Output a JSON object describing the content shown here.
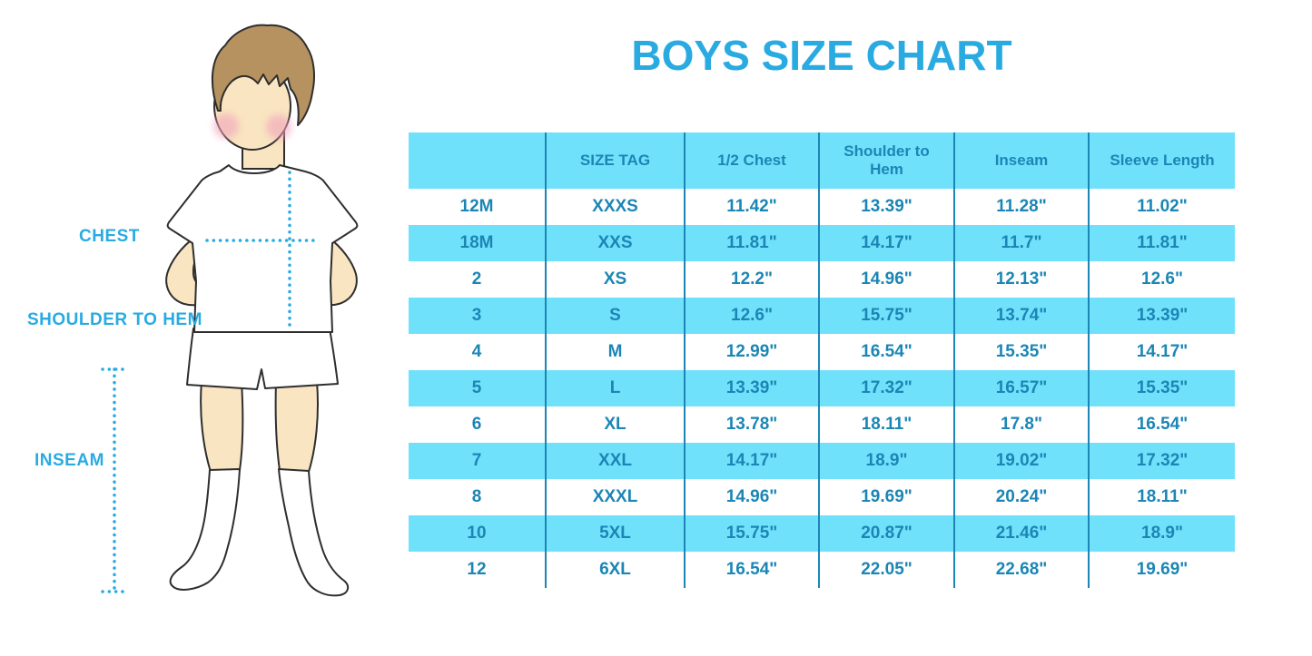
{
  "title": "BOYS SIZE CHART",
  "figure": {
    "description": "cartoon boy with brown hair, white t-shirt, white shorts and knee-high white socks, hands on hips, with dotted measurement guide lines",
    "labels": {
      "chest": "CHEST",
      "shoulder_to_hem": "SHOULDER TO HEM",
      "inseam": "INSEAM"
    }
  },
  "chart_data": {
    "type": "table",
    "title": "BOYS SIZE CHART",
    "columns": [
      "",
      "SIZE TAG",
      "1/2 Chest",
      "Shoulder to Hem",
      "Inseam",
      "Sleeve Length"
    ],
    "rows": [
      [
        "12M",
        "XXXS",
        "11.42\"",
        "13.39\"",
        "11.28\"",
        "11.02\""
      ],
      [
        "18M",
        "XXS",
        "11.81\"",
        "14.17\"",
        "11.7\"",
        "11.81\""
      ],
      [
        "2",
        "XS",
        "12.2\"",
        "14.96\"",
        "12.13\"",
        "12.6\""
      ],
      [
        "3",
        "S",
        "12.6\"",
        "15.75\"",
        "13.74\"",
        "13.39\""
      ],
      [
        "4",
        "M",
        "12.99\"",
        "16.54\"",
        "15.35\"",
        "14.17\""
      ],
      [
        "5",
        "L",
        "13.39\"",
        "17.32\"",
        "16.57\"",
        "15.35\""
      ],
      [
        "6",
        "XL",
        "13.78\"",
        "18.11\"",
        "17.8\"",
        "16.54\""
      ],
      [
        "7",
        "XXL",
        "14.17\"",
        "18.9\"",
        "19.02\"",
        "17.32\""
      ],
      [
        "8",
        "XXXL",
        "14.96\"",
        "19.69\"",
        "20.24\"",
        "18.11\""
      ],
      [
        "10",
        "5XL",
        "15.75\"",
        "20.87\"",
        "21.46\"",
        "18.9\""
      ],
      [
        "12",
        "6XL",
        "16.54\"",
        "22.05\"",
        "22.68\"",
        "19.69\""
      ]
    ]
  },
  "colors": {
    "accent_blue": "#29ABE2",
    "table_text": "#1B86B5",
    "stripe_cyan": "#70E1FB",
    "skin": "#F9E5C1",
    "hair": "#B5925F",
    "cheek": "#F2A3BC",
    "outline": "#2E2E2E"
  }
}
